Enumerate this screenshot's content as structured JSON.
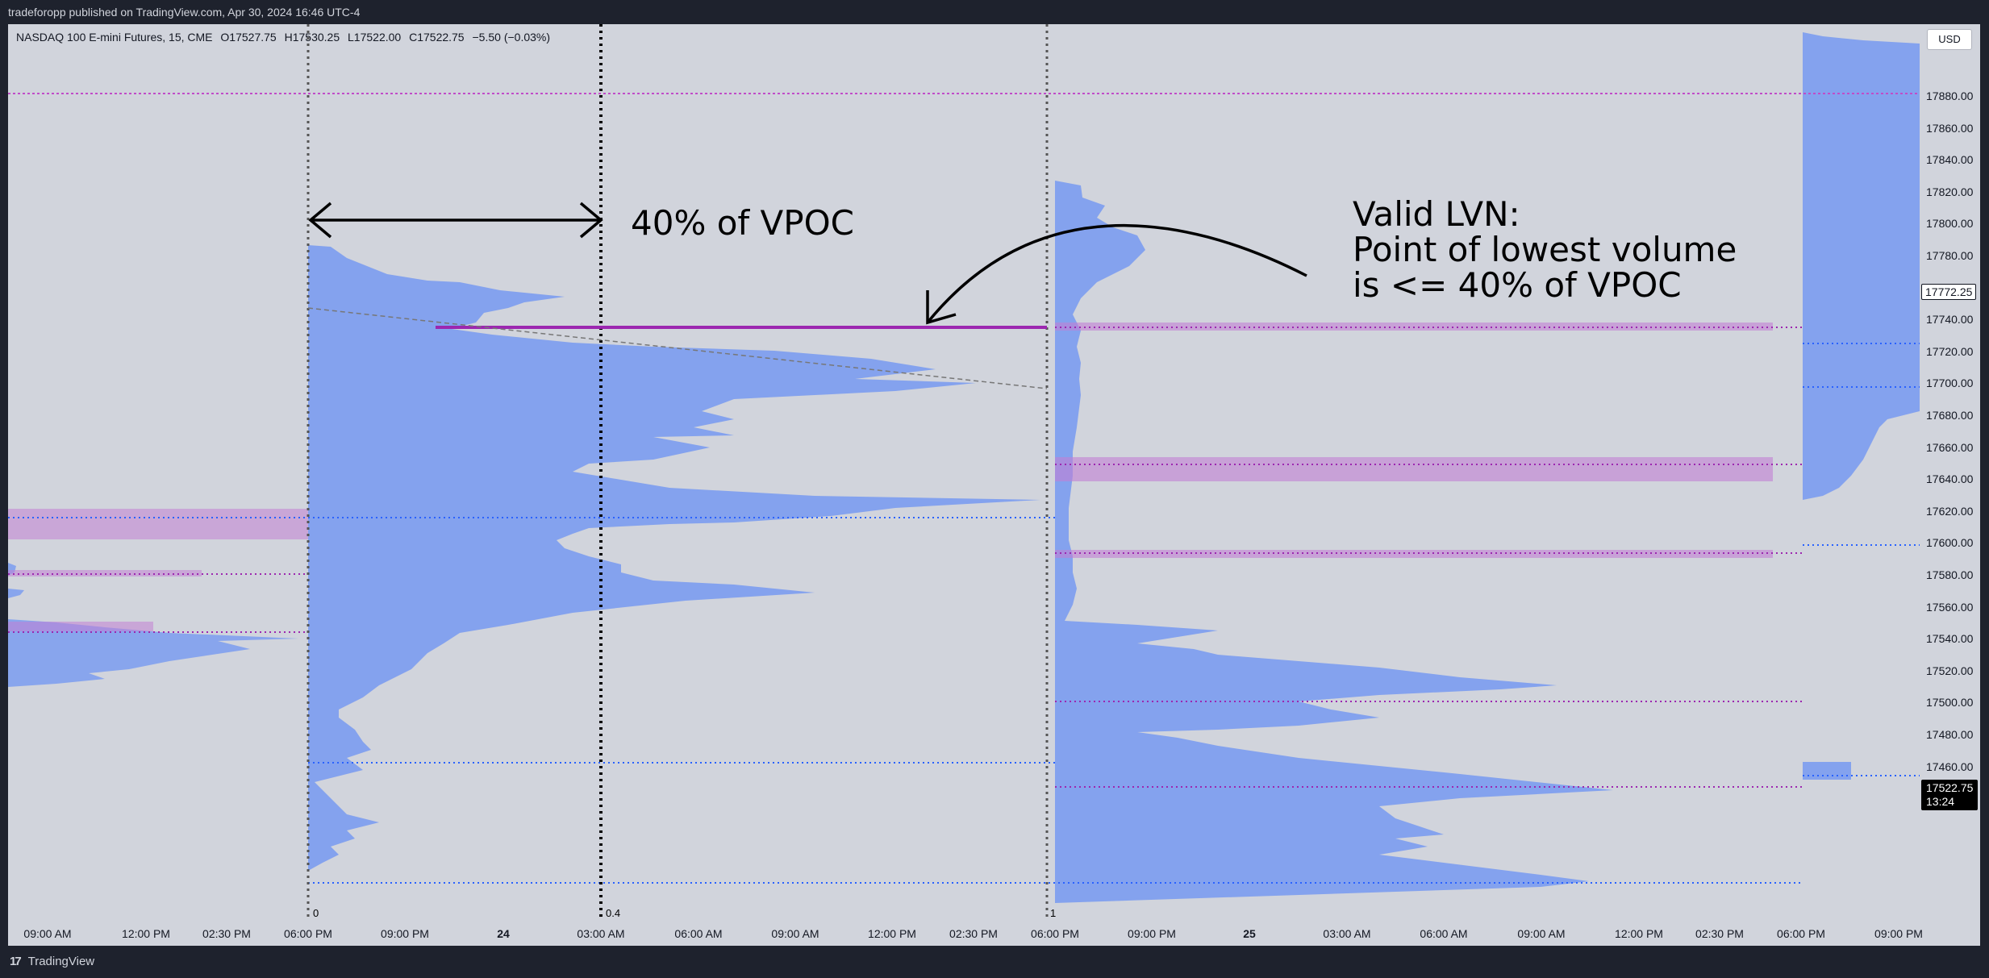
{
  "header": {
    "publisher": "tradeforopp published on TradingView.com, Apr 30, 2024 16:46 UTC-4"
  },
  "legend": {
    "symbol": "NASDAQ 100 E-mini Futures, 15, CME",
    "open": "O17527.75",
    "high": "H17530.25",
    "low": "L17522.00",
    "close": "C17522.75",
    "change": "−5.50 (−0.03%)"
  },
  "currency": "USD",
  "y_ticks": [
    "17880.00",
    "17860.00",
    "17840.00",
    "17820.00",
    "17800.00",
    "17780.00",
    "17760.00",
    "17740.00",
    "17720.00",
    "17700.00",
    "17680.00",
    "17660.00",
    "17640.00",
    "17620.00",
    "17600.00",
    "17580.00",
    "17560.00",
    "17540.00",
    "17520.00",
    "17500.00",
    "17480.00",
    "17460.00"
  ],
  "x_ticks": [
    {
      "label": "09:00 AM",
      "bold": false
    },
    {
      "label": "12:00 PM",
      "bold": false
    },
    {
      "label": "02:30 PM",
      "bold": false
    },
    {
      "label": "06:00 PM",
      "bold": false
    },
    {
      "label": "09:00 PM",
      "bold": false
    },
    {
      "label": "24",
      "bold": true
    },
    {
      "label": "03:00 AM",
      "bold": false
    },
    {
      "label": "06:00 AM",
      "bold": false
    },
    {
      "label": "09:00 AM",
      "bold": false
    },
    {
      "label": "12:00 PM",
      "bold": false
    },
    {
      "label": "02:30 PM",
      "bold": false
    },
    {
      "label": "06:00 PM",
      "bold": false
    },
    {
      "label": "09:00 PM",
      "bold": false
    },
    {
      "label": "25",
      "bold": true
    },
    {
      "label": "03:00 AM",
      "bold": false
    },
    {
      "label": "06:00 AM",
      "bold": false
    },
    {
      "label": "09:00 AM",
      "bold": false
    },
    {
      "label": "12:00 PM",
      "bold": false
    },
    {
      "label": "02:30 PM",
      "bold": false
    },
    {
      "label": "06:00 PM",
      "bold": false
    },
    {
      "label": "09:00 PM",
      "bold": false
    }
  ],
  "axis_markers": {
    "zero": "0",
    "forty": "0.4",
    "one": "1"
  },
  "price_tags": {
    "marker": "17772.25",
    "last": "17522.75",
    "countdown": "13:24"
  },
  "annotations": {
    "vpoc_ratio": "40% of VPOC",
    "lvn_title": "Valid LVN:",
    "lvn_line1": "Point of lowest volume",
    "lvn_line2": "is <= 40% of VPOC"
  },
  "colors": {
    "profile_fill": "#7b9cf0",
    "lvn_highlight": "#c27fd4",
    "poc_line": "#9c27b0",
    "background": "#d1d4dc"
  },
  "footer": {
    "brand": "TradingView",
    "logo_icon": "tradingview-logo-icon"
  }
}
